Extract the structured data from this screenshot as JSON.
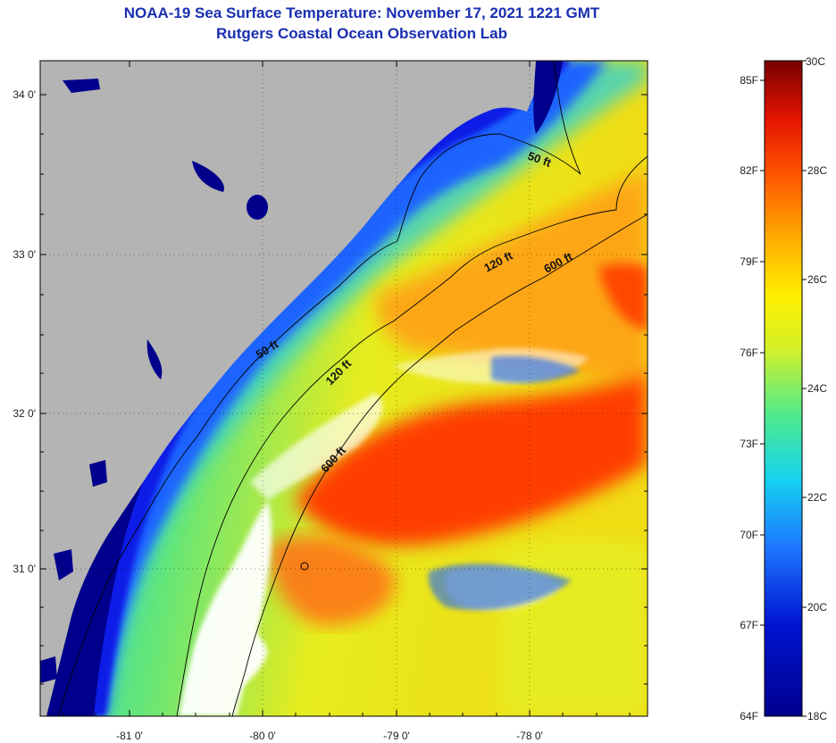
{
  "header": {
    "title": "NOAA-19 Sea Surface Temperature:  November 17, 2021 1221 GMT",
    "subtitle": "Rutgers Coastal Ocean Observation Lab"
  },
  "map": {
    "lon_labels": [
      "-81 0'",
      "-80 0'",
      "-79 0'",
      "-78 0'"
    ],
    "lat_labels": [
      "34 0'",
      "33 0'",
      "32 0'",
      "31 0'"
    ],
    "contours": {
      "c50_a": "50 ft",
      "c50_b": "50 ft",
      "c120_a": "120 ft",
      "c120_b": "120 ft",
      "c600_a": "600 ft",
      "c600_b": "600 ft"
    },
    "colors": {
      "land": "#b4b4b4",
      "cloud": "#ffffff",
      "cold": "#00008c",
      "warm": "#ff3c00"
    }
  },
  "colorbar": {
    "f_labels": [
      "85F",
      "82F",
      "79F",
      "76F",
      "73F",
      "70F",
      "67F",
      "64F"
    ],
    "c_labels": [
      "30C",
      "28C",
      "26C",
      "24C",
      "22C",
      "20C",
      "18C"
    ]
  }
}
